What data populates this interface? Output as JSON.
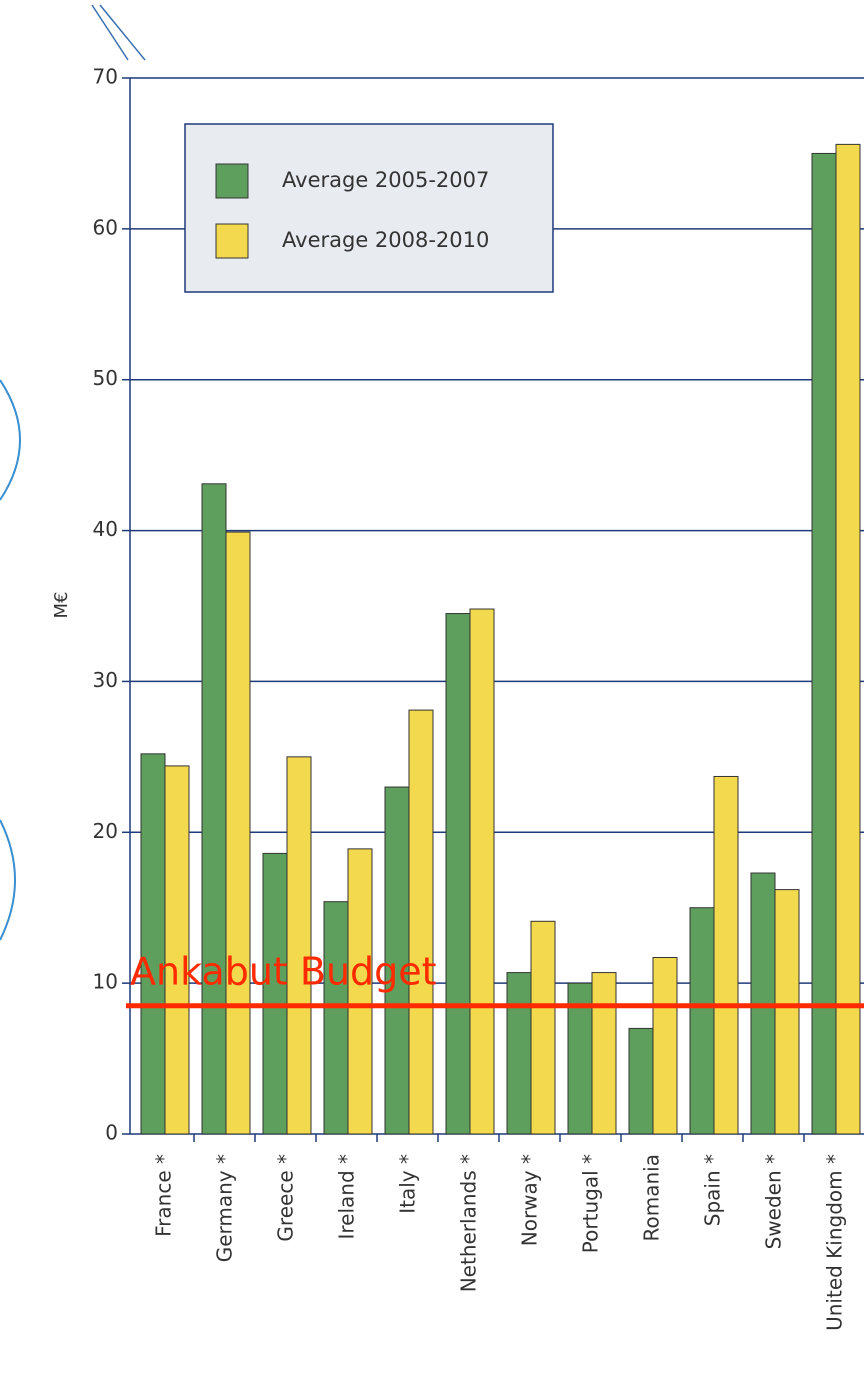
{
  "chart_data": {
    "type": "bar",
    "y_label": "M€",
    "categories": [
      "France *",
      "Germany *",
      "Greece *",
      "Ireland *",
      "Italy *",
      "Netherlands *",
      "Norway *",
      "Portugal *",
      "Romania",
      "Spain *",
      "Sweden *",
      "United Kingdom *"
    ],
    "series": [
      {
        "name": "Average 2005-2007",
        "color": "#5e9f5e",
        "values": [
          25.2,
          43.1,
          18.6,
          15.4,
          23.0,
          34.5,
          10.7,
          10.0,
          7.0,
          15.0,
          17.3,
          65.0
        ]
      },
      {
        "name": "Average 2008-2010",
        "color": "#f2d94e",
        "values": [
          24.4,
          39.9,
          25.0,
          18.9,
          28.1,
          34.8,
          14.1,
          10.7,
          11.7,
          23.7,
          16.2,
          65.6
        ]
      }
    ],
    "ylim": [
      0,
      70
    ],
    "yticks": [
      0,
      10,
      20,
      30,
      40,
      50,
      60,
      70
    ],
    "grid": true,
    "reference_line": {
      "label": "Ankabut Budget",
      "value": 8.5,
      "color": "#ff2a00"
    }
  }
}
